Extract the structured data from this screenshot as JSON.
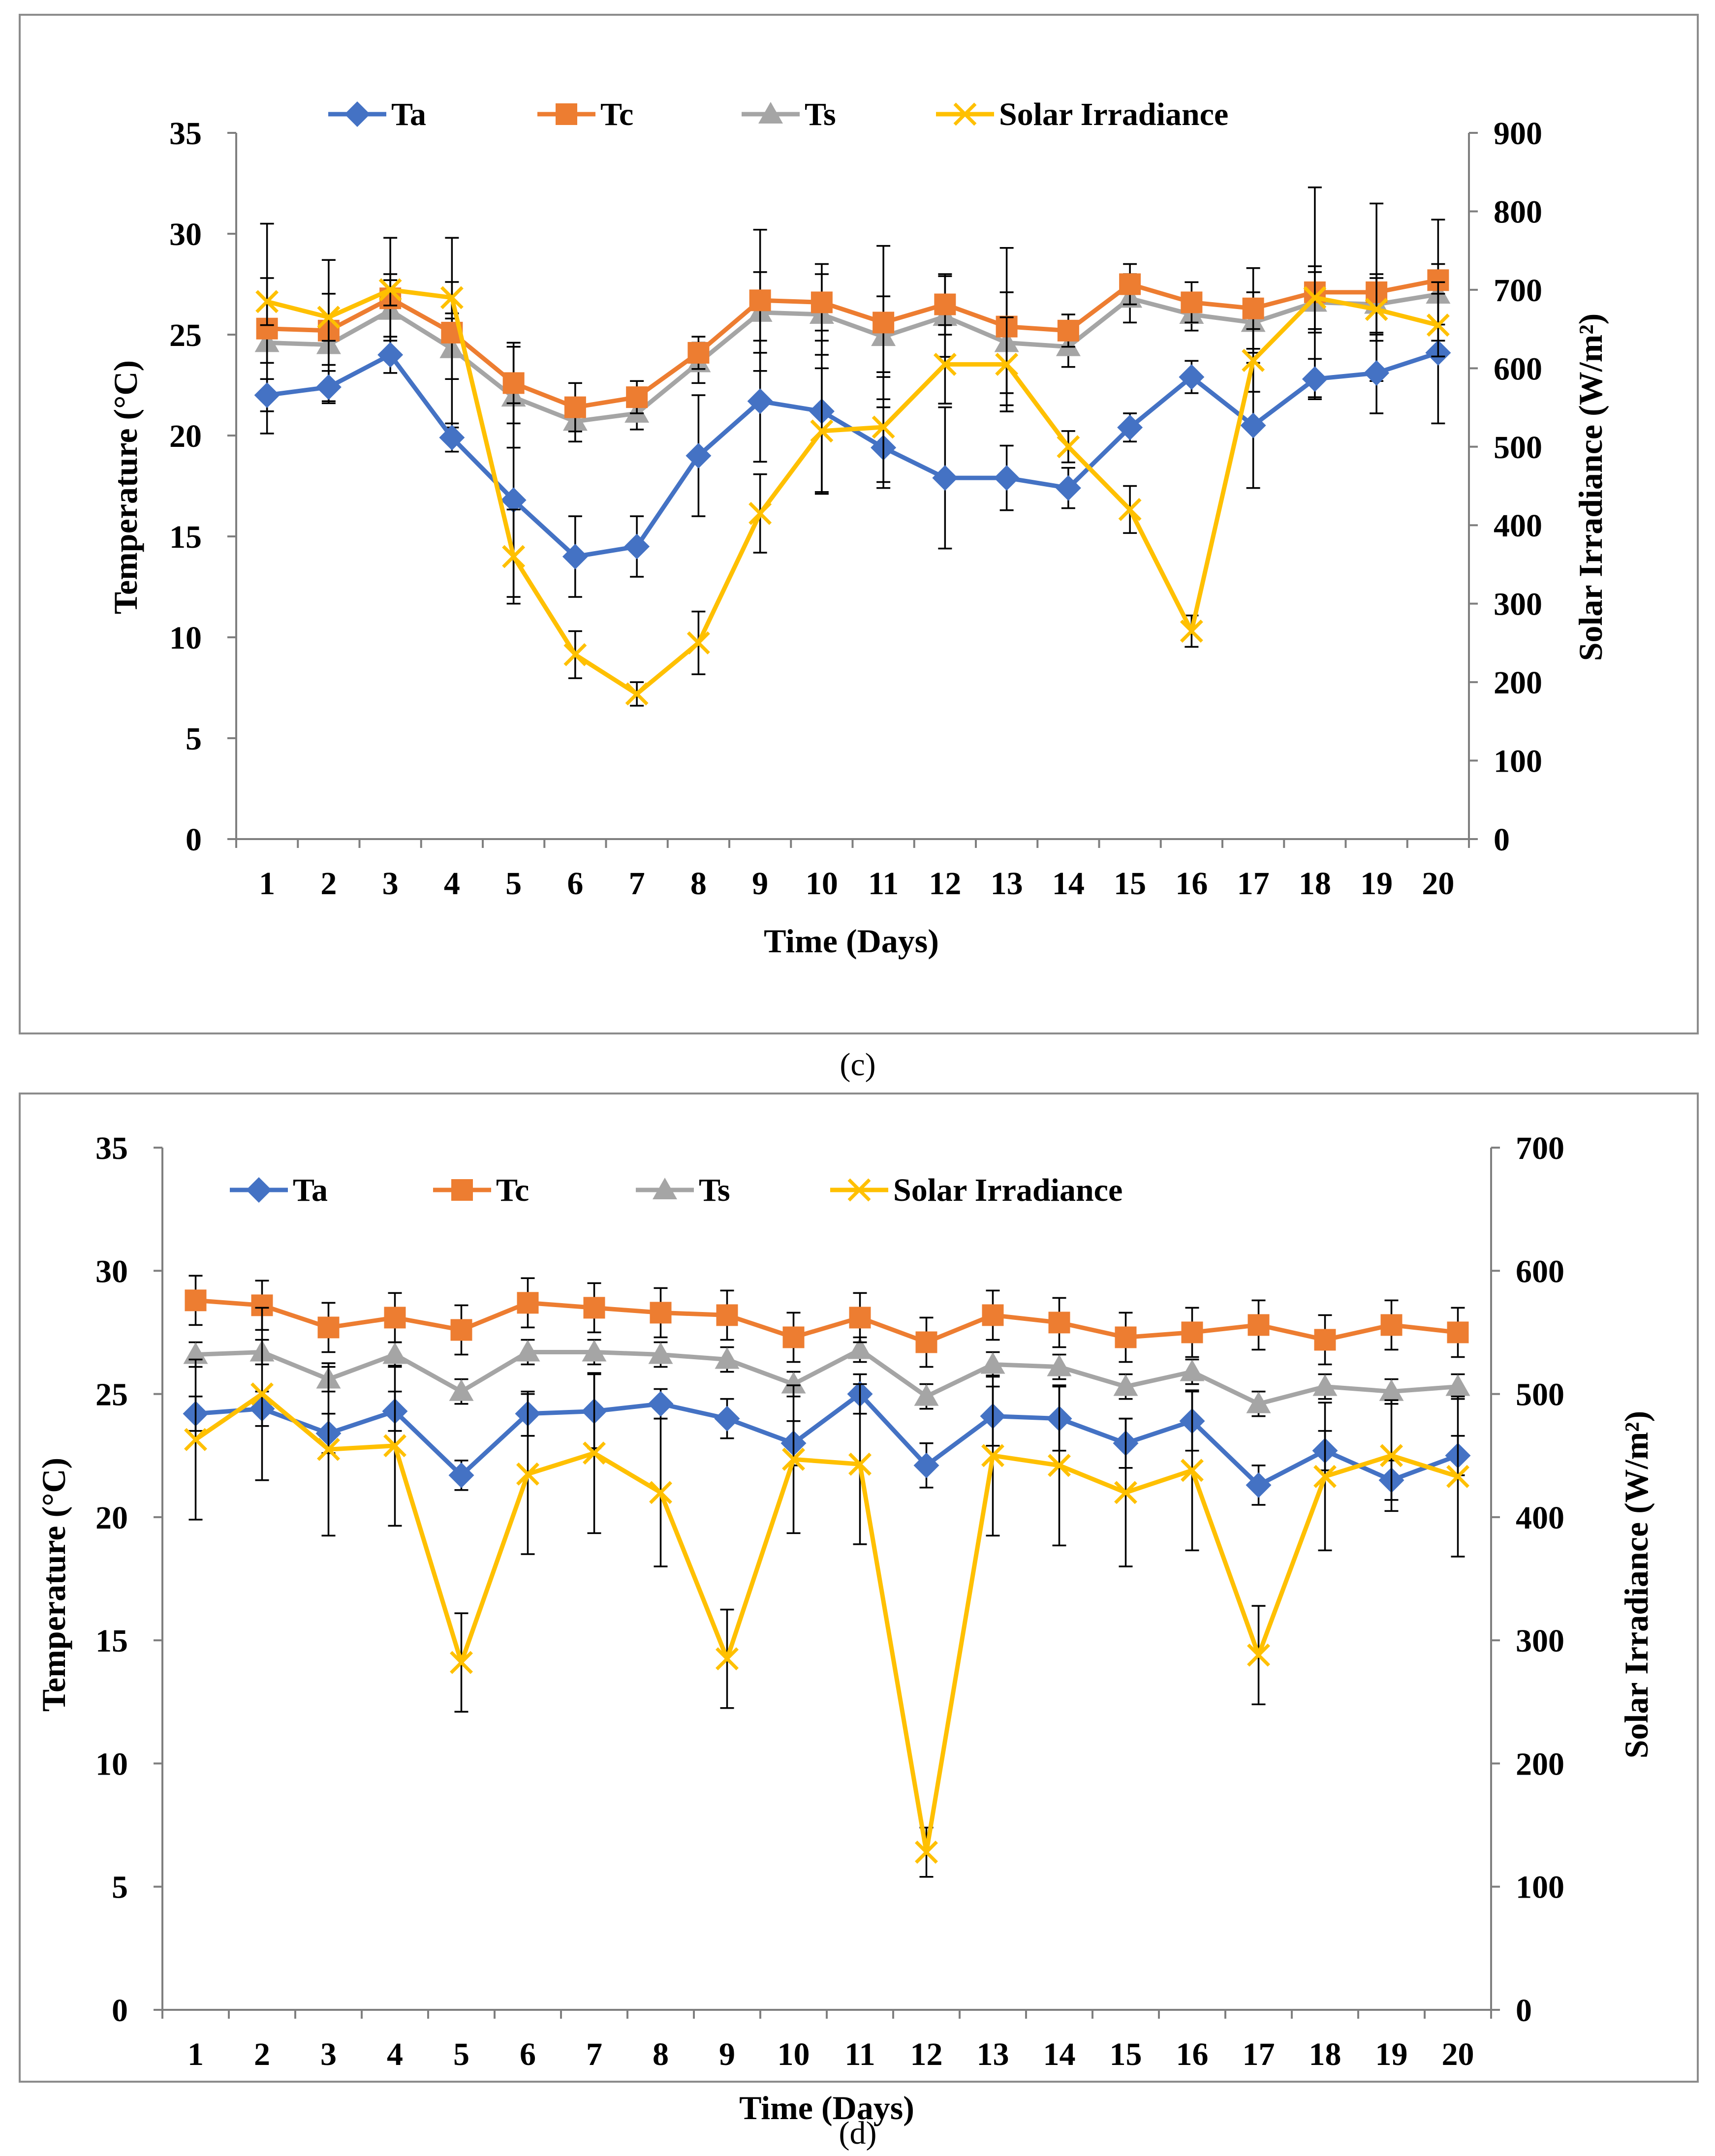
{
  "colors": {
    "Ta": "#4472C4",
    "Tc": "#ED7D31",
    "Ts": "#A5A5A5",
    "Solar Irradiance": "#FFC000",
    "frame": "#8c8c8c",
    "axis": "#7f7f7f",
    "errorbar": "#000000"
  },
  "panels": [
    {
      "caption": "(c)"
    },
    {
      "caption": "(d)"
    }
  ],
  "chart_data": [
    {
      "type": "line",
      "title": "",
      "xlabel": "Time  (Days)",
      "ylabel": "Temperature (°C)",
      "y2label": "Solar Irradiance (W/m²)",
      "categories": [
        "1",
        "2",
        "3",
        "4",
        "5",
        "6",
        "7",
        "8",
        "9",
        "10",
        "11",
        "12",
        "13",
        "14",
        "15",
        "16",
        "17",
        "18",
        "19",
        "20"
      ],
      "ylim": [
        0,
        35
      ],
      "yticks": [
        0,
        5,
        10,
        15,
        20,
        25,
        30,
        35
      ],
      "y2lim": [
        0,
        900
      ],
      "y2ticks": [
        0,
        100,
        200,
        300,
        400,
        500,
        600,
        700,
        800,
        900
      ],
      "legend": "top",
      "grid": false,
      "series": [
        {
          "name": "Ta",
          "axis": "left",
          "marker": "diamond",
          "values": [
            22.0,
            22.4,
            24.0,
            19.9,
            16.8,
            14.0,
            14.5,
            19.0,
            21.7,
            21.2,
            19.4,
            17.9,
            17.9,
            17.4,
            20.4,
            22.9,
            20.5,
            22.8,
            23.1,
            24.1
          ],
          "errors": [
            0.8,
            0.8,
            0.9,
            0.7,
            4.8,
            2.0,
            1.5,
            3.0,
            3.0,
            4.0,
            2.0,
            3.5,
            1.6,
            1.0,
            0.7,
            0.8,
            3.1,
            1.0,
            2.0,
            3.5
          ]
        },
        {
          "name": "Tc",
          "axis": "left",
          "marker": "square",
          "values": [
            25.3,
            25.2,
            26.8,
            25.1,
            22.6,
            21.4,
            21.9,
            24.1,
            26.7,
            26.6,
            25.6,
            26.5,
            25.4,
            25.2,
            27.5,
            26.6,
            26.3,
            27.1,
            27.1,
            27.7
          ],
          "errors": [
            5.2,
            3.5,
            3.0,
            4.7,
            2.0,
            1.2,
            0.8,
            0.8,
            3.5,
            1.9,
            3.8,
            1.5,
            3.9,
            0.8,
            1.0,
            1.0,
            2.0,
            5.2,
            4.4,
            3.0
          ]
        },
        {
          "name": "Ts",
          "axis": "left",
          "marker": "triangle",
          "values": [
            24.6,
            24.5,
            26.2,
            24.3,
            21.9,
            20.7,
            21.1,
            23.6,
            26.1,
            26.0,
            24.9,
            25.9,
            24.6,
            24.4,
            26.8,
            26.0,
            25.6,
            26.6,
            26.5,
            27.0
          ],
          "errors": [
            1.0,
            1.0,
            1.5,
            1.5,
            2.5,
            1.0,
            0.8,
            1.0,
            2.0,
            2.0,
            2.0,
            2.0,
            2.5,
            1.0,
            1.2,
            0.8,
            1.5,
            1.5,
            1.5,
            1.5
          ]
        },
        {
          "name": "Solar Irradiance",
          "axis": "right",
          "marker": "x",
          "values": [
            685,
            665,
            700,
            690,
            360,
            235,
            185,
            250,
            415,
            520,
            525,
            605,
            605,
            500,
            420,
            265,
            610,
            690,
            675,
            655
          ],
          "errors": [
            30,
            30,
            20,
            20,
            60,
            30,
            15,
            40,
            50,
            80,
            70,
            50,
            60,
            20,
            30,
            20,
            40,
            40,
            40,
            40
          ]
        }
      ]
    },
    {
      "type": "line",
      "title": "",
      "xlabel": "Time  (Days)",
      "ylabel": "Temperature (°C)",
      "y2label": "Solar Irradiance (W/m²)",
      "categories": [
        "1",
        "2",
        "3",
        "4",
        "5",
        "6",
        "7",
        "8",
        "9",
        "10",
        "11",
        "12",
        "13",
        "14",
        "15",
        "16",
        "17",
        "18",
        "19",
        "20"
      ],
      "ylim": [
        0,
        35
      ],
      "yticks": [
        0,
        5,
        10,
        15,
        20,
        25,
        30,
        35
      ],
      "y2lim": [
        0,
        700
      ],
      "y2ticks": [
        0,
        100,
        200,
        300,
        400,
        500,
        600,
        700
      ],
      "legend": "top",
      "grid": false,
      "series": [
        {
          "name": "Ta",
          "axis": "left",
          "marker": "diamond",
          "values": [
            24.2,
            24.4,
            23.4,
            24.3,
            21.7,
            24.2,
            24.3,
            24.6,
            24.0,
            23.0,
            25.0,
            22.1,
            24.1,
            24.0,
            23.0,
            23.9,
            21.3,
            22.7,
            21.5,
            22.5
          ],
          "errors": [
            0.7,
            0.7,
            0.8,
            0.8,
            0.6,
            0.9,
            1.5,
            0.6,
            0.8,
            0.9,
            0.8,
            0.9,
            1.2,
            1.3,
            1.0,
            1.2,
            0.8,
            0.8,
            0.8,
            0.8
          ]
        },
        {
          "name": "Tc",
          "axis": "left",
          "marker": "square",
          "values": [
            28.8,
            28.6,
            27.7,
            28.1,
            27.6,
            28.7,
            28.5,
            28.3,
            28.2,
            27.3,
            28.1,
            27.1,
            28.2,
            27.9,
            27.3,
            27.5,
            27.8,
            27.2,
            27.8,
            27.5
          ],
          "errors": [
            1.0,
            1.0,
            1.0,
            1.0,
            1.0,
            1.0,
            1.0,
            1.0,
            1.0,
            1.0,
            1.0,
            1.0,
            1.0,
            1.0,
            1.0,
            1.0,
            1.0,
            1.0,
            1.0,
            1.0
          ]
        },
        {
          "name": "Ts",
          "axis": "left",
          "marker": "triangle",
          "values": [
            26.6,
            26.7,
            25.6,
            26.6,
            25.1,
            26.7,
            26.7,
            26.6,
            26.4,
            25.4,
            26.8,
            24.9,
            26.2,
            26.1,
            25.3,
            25.9,
            24.6,
            25.3,
            25.1,
            25.3
          ],
          "errors": [
            0.5,
            0.5,
            0.5,
            0.5,
            0.5,
            0.5,
            0.5,
            0.5,
            0.5,
            0.5,
            0.5,
            0.5,
            0.5,
            0.5,
            0.5,
            0.5,
            0.5,
            0.5,
            0.5,
            0.5
          ]
        },
        {
          "name": "Solar Irradiance",
          "axis": "right",
          "marker": "x",
          "values": [
            463,
            500,
            455,
            458,
            282,
            435,
            452,
            420,
            285,
            447,
            443,
            128,
            450,
            442,
            420,
            438,
            288,
            433,
            450,
            433
          ],
          "errors": [
            65,
            70,
            70,
            65,
            40,
            65,
            65,
            60,
            40,
            60,
            65,
            20,
            65,
            65,
            60,
            65,
            40,
            60,
            45,
            65
          ]
        }
      ]
    }
  ]
}
